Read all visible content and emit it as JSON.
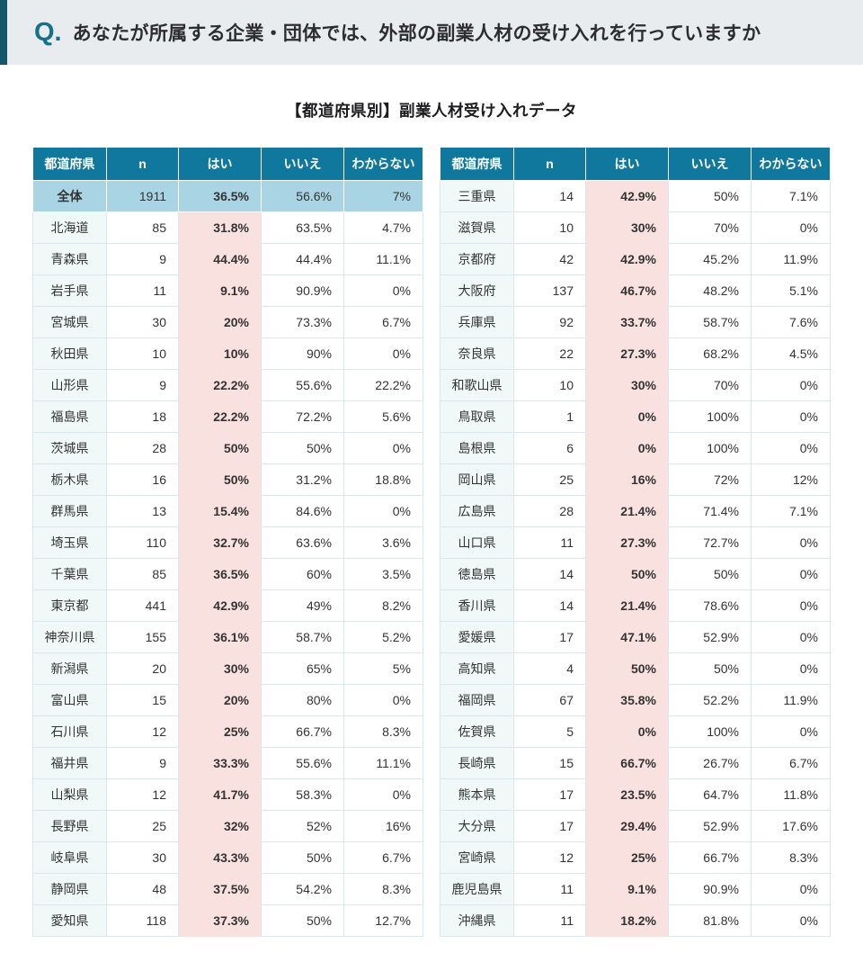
{
  "question_bar": {
    "prefix": "Q.",
    "text": "あなたが所属する企業・団体では、外部の副業人材の受け入れを行っていますか"
  },
  "section_title": "【都道府県別】副業人材受け入れデータ",
  "colors": {
    "question_bar_bg": "#e9ecef",
    "accent_teal": "#14576b",
    "q_prefix_teal": "#16708c",
    "table_header_bg": "#10789c",
    "total_row_bg": "#a9d4e4",
    "yes_column_bg": "#f8e1de",
    "prefecture_cell_bg": "#f0f8f8",
    "cell_border": "#d8e8ee",
    "text": "#333333"
  },
  "chart_data": {
    "type": "table",
    "title": "【都道府県別】副業人材受け入れデータ",
    "columns": [
      "都道府県",
      "n",
      "はい",
      "いいえ",
      "わからない"
    ],
    "highlight_row": "全体",
    "tables": [
      {
        "name": "left",
        "rows": [
          [
            "全体",
            "1911",
            "36.5%",
            "56.6%",
            "7%"
          ],
          [
            "北海道",
            "85",
            "31.8%",
            "63.5%",
            "4.7%"
          ],
          [
            "青森県",
            "9",
            "44.4%",
            "44.4%",
            "11.1%"
          ],
          [
            "岩手県",
            "11",
            "9.1%",
            "90.9%",
            "0%"
          ],
          [
            "宮城県",
            "30",
            "20%",
            "73.3%",
            "6.7%"
          ],
          [
            "秋田県",
            "10",
            "10%",
            "90%",
            "0%"
          ],
          [
            "山形県",
            "9",
            "22.2%",
            "55.6%",
            "22.2%"
          ],
          [
            "福島県",
            "18",
            "22.2%",
            "72.2%",
            "5.6%"
          ],
          [
            "茨城県",
            "28",
            "50%",
            "50%",
            "0%"
          ],
          [
            "栃木県",
            "16",
            "50%",
            "31.2%",
            "18.8%"
          ],
          [
            "群馬県",
            "13",
            "15.4%",
            "84.6%",
            "0%"
          ],
          [
            "埼玉県",
            "110",
            "32.7%",
            "63.6%",
            "3.6%"
          ],
          [
            "千葉県",
            "85",
            "36.5%",
            "60%",
            "3.5%"
          ],
          [
            "東京都",
            "441",
            "42.9%",
            "49%",
            "8.2%"
          ],
          [
            "神奈川県",
            "155",
            "36.1%",
            "58.7%",
            "5.2%"
          ],
          [
            "新潟県",
            "20",
            "30%",
            "65%",
            "5%"
          ],
          [
            "富山県",
            "15",
            "20%",
            "80%",
            "0%"
          ],
          [
            "石川県",
            "12",
            "25%",
            "66.7%",
            "8.3%"
          ],
          [
            "福井県",
            "9",
            "33.3%",
            "55.6%",
            "11.1%"
          ],
          [
            "山梨県",
            "12",
            "41.7%",
            "58.3%",
            "0%"
          ],
          [
            "長野県",
            "25",
            "32%",
            "52%",
            "16%"
          ],
          [
            "岐阜県",
            "30",
            "43.3%",
            "50%",
            "6.7%"
          ],
          [
            "静岡県",
            "48",
            "37.5%",
            "54.2%",
            "8.3%"
          ],
          [
            "愛知県",
            "118",
            "37.3%",
            "50%",
            "12.7%"
          ]
        ]
      },
      {
        "name": "right",
        "rows": [
          [
            "三重県",
            "14",
            "42.9%",
            "50%",
            "7.1%"
          ],
          [
            "滋賀県",
            "10",
            "30%",
            "70%",
            "0%"
          ],
          [
            "京都府",
            "42",
            "42.9%",
            "45.2%",
            "11.9%"
          ],
          [
            "大阪府",
            "137",
            "46.7%",
            "48.2%",
            "5.1%"
          ],
          [
            "兵庫県",
            "92",
            "33.7%",
            "58.7%",
            "7.6%"
          ],
          [
            "奈良県",
            "22",
            "27.3%",
            "68.2%",
            "4.5%"
          ],
          [
            "和歌山県",
            "10",
            "30%",
            "70%",
            "0%"
          ],
          [
            "鳥取県",
            "1",
            "0%",
            "100%",
            "0%"
          ],
          [
            "島根県",
            "6",
            "0%",
            "100%",
            "0%"
          ],
          [
            "岡山県",
            "25",
            "16%",
            "72%",
            "12%"
          ],
          [
            "広島県",
            "28",
            "21.4%",
            "71.4%",
            "7.1%"
          ],
          [
            "山口県",
            "11",
            "27.3%",
            "72.7%",
            "0%"
          ],
          [
            "徳島県",
            "14",
            "50%",
            "50%",
            "0%"
          ],
          [
            "香川県",
            "14",
            "21.4%",
            "78.6%",
            "0%"
          ],
          [
            "愛媛県",
            "17",
            "47.1%",
            "52.9%",
            "0%"
          ],
          [
            "高知県",
            "4",
            "50%",
            "50%",
            "0%"
          ],
          [
            "福岡県",
            "67",
            "35.8%",
            "52.2%",
            "11.9%"
          ],
          [
            "佐賀県",
            "5",
            "0%",
            "100%",
            "0%"
          ],
          [
            "長崎県",
            "15",
            "66.7%",
            "26.7%",
            "6.7%"
          ],
          [
            "熊本県",
            "17",
            "23.5%",
            "64.7%",
            "11.8%"
          ],
          [
            "大分県",
            "17",
            "29.4%",
            "52.9%",
            "17.6%"
          ],
          [
            "宮崎県",
            "12",
            "25%",
            "66.7%",
            "8.3%"
          ],
          [
            "鹿児島県",
            "11",
            "9.1%",
            "90.9%",
            "0%"
          ],
          [
            "沖縄県",
            "11",
            "18.2%",
            "81.8%",
            "0%"
          ]
        ]
      }
    ]
  }
}
